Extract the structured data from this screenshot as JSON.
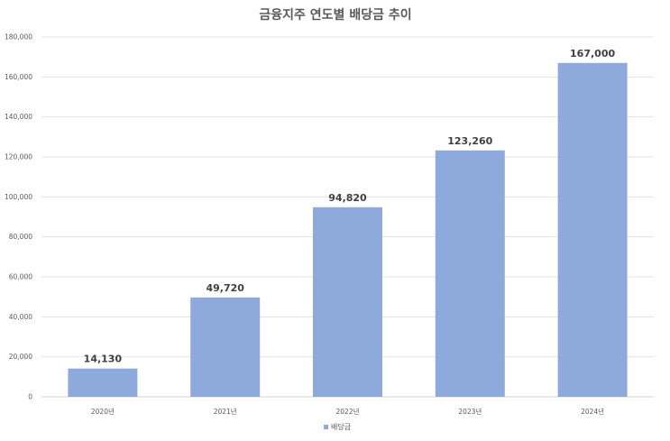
{
  "chart_data": {
    "type": "bar",
    "title": "금융지주 연도별 배당금 추이",
    "categories": [
      "2020년",
      "2021년",
      "2022년",
      "2023년",
      "2024년"
    ],
    "series": [
      {
        "name": "배당금",
        "values": [
          14130,
          49720,
          94820,
          123260,
          167000
        ],
        "color": "#8eaadc"
      }
    ],
    "data_labels": [
      "14,130",
      "49,720",
      "94,820",
      "123,260",
      "167,000"
    ],
    "ylim": [
      0,
      180000
    ],
    "y_ticks": [
      "0",
      "20,000",
      "40,000",
      "60,000",
      "80,000",
      "100,000",
      "120,000",
      "140,000",
      "160,000",
      "180,000"
    ],
    "y_tick_values": [
      0,
      20000,
      40000,
      60000,
      80000,
      100000,
      120000,
      140000,
      160000,
      180000
    ],
    "grid": true,
    "legend_position": "bottom"
  }
}
